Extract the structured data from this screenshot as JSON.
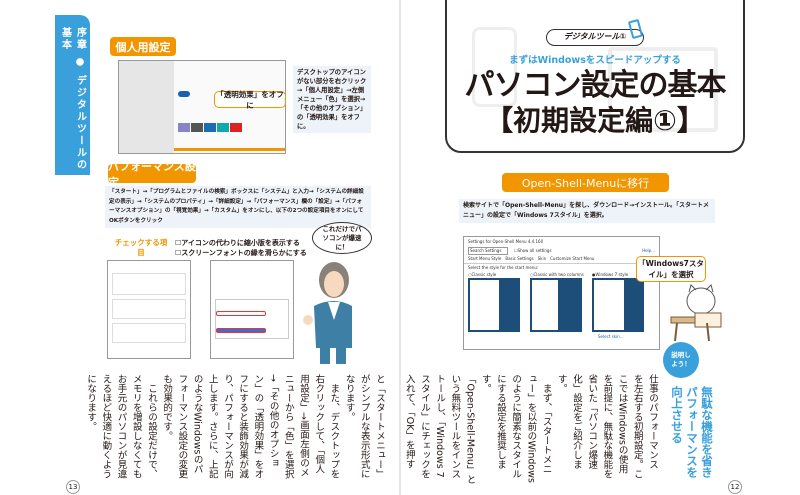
{
  "left_page": {
    "sidebar": "序章 ● デジタルツールの基本",
    "personal": {
      "label": "個人用設定",
      "callout": "「透明効果」をオフに",
      "note": "デスクトップのアイコンがない部分を右クリック→「個人用設定」→左側メニュー「色」を選択→「その他のオプション」の「透明効果」をオフに。"
    },
    "performance": {
      "label": "パフォーマンス設定",
      "note": "「スタート」→「プログラムとファイルの検索」ボックスに「システム」と入力→「システムの詳細設定の表示」→「システムのプロパティ」→「詳細設定」→「パフォーマンス」欄の「設定」→「パフォーマンスオプション」の「視覚効果」→「カスタム」をオンにし、以下の2つの設定項目をオンにしてOKボタンをクリック",
      "check_label": "チェックする項目",
      "checks": [
        "アイコンの代わりに縮小版を表示する",
        "スクリーンフォントの縁を滑らかにする"
      ],
      "speech": "これだけでパソコンが爆速に！"
    },
    "body_lines": [
      "と「スタートメニュー」",
      "がシンプルな表示形式に",
      "なります。",
      "　また、デスクトップを",
      "右クリックして、「個人",
      "用設定」→画面左側のメ",
      "ニューから「色」を選択",
      "→「その他のオプショ",
      "ン」の「透明効果」をオ",
      "フにすると装飾効果が減",
      "り、パフォーマンスが向",
      "上します。さらに、上記",
      "のようなWindowsのパ",
      "フォーマンス設定の変更",
      "も効果的です。",
      "　これらの設定だけで、",
      "メモリを増設しなくても",
      "お手元のパソコンが見違",
      "えるほど快適に動くよう",
      "になります。"
    ],
    "page_number": "13"
  },
  "right_page": {
    "badge": "デジタルツール①",
    "subtitle": "まずはWindowsをスピードアップする",
    "title": "パソコン設定の基本",
    "title2": "【初期設定編①】",
    "section_label": "Open-Shell-Menuに移行",
    "note": "検索サイトで「Open-Shell-Menu」を探し、ダウンロード→インストール。「スタートメニュー」の設定で「Windows 7スタイル」を選択。",
    "window": {
      "title": "Settings for Open-Shell Menu 4.4.160",
      "search_placeholder": "Search Settings",
      "show_all": "Show all settings",
      "help": "Help...",
      "tabs": [
        "Start Menu Style",
        "Basic Settings",
        "Skin",
        "Customize Start Menu"
      ],
      "prompt": "Select the style for the start menu:",
      "styles": [
        "Classic style",
        "Classic with two columns",
        "Windows 7 style"
      ],
      "select_skin": "Select skin..."
    },
    "callout": "「Windows7スタイル」を選択",
    "explain_badge": "説明しよう！",
    "headline_lines": [
      "無駄な機能を省き",
      "パフォーマンスを",
      "向上させる"
    ],
    "body_lines": [
      "仕事のパフォーマンス",
      "を左右する初期設定。こ",
      "こではWindowsの使用",
      "を前提に、無駄な機能を",
      "省いた「パソコン爆速",
      "化」設定をご紹介します。",
      "　まず、「スタートメニ",
      "ュー」を以前のWindows",
      "のように簡素なスタイル",
      "にする設定を推奨します。",
      "「Open-Shell-Menu」と",
      "いう無料ツールをインス",
      "トールし、「Windows 7",
      "スタイル」にチェックを",
      "入れて、「OK」を押す"
    ],
    "page_number": "12",
    "colors": {
      "accent_orange": "#f29600",
      "accent_blue": "#3aa0dc"
    }
  }
}
